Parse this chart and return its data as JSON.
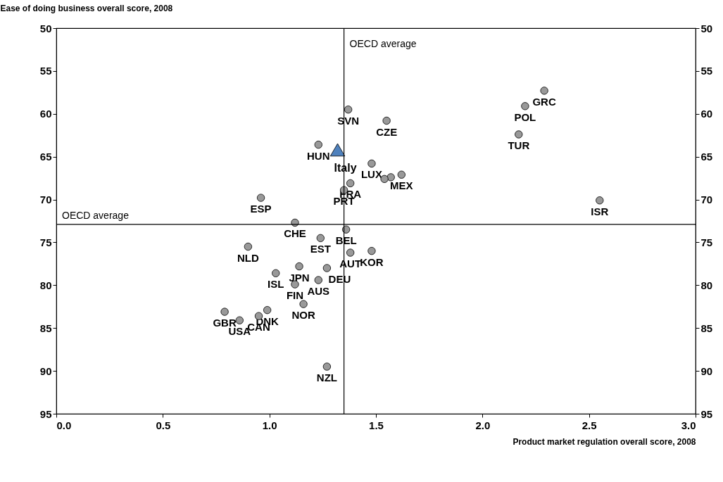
{
  "chart_data": {
    "type": "scatter",
    "xlabel": "Product market regulation overall score, 2008",
    "ylabel": "Ease of doing business overall score, 2008",
    "xlim": [
      0,
      3
    ],
    "xticks": [
      {
        "value": 0,
        "label": "0.0"
      },
      0.5,
      {
        "value": 1,
        "label": "1.0"
      },
      1.5,
      {
        "value": 2,
        "label": "2.0"
      },
      2.5,
      {
        "value": 3,
        "label": "3.0"
      }
    ],
    "ylim": [
      95,
      50
    ],
    "yticks": [
      50,
      55,
      60,
      65,
      70,
      75,
      80,
      85,
      90,
      95
    ],
    "y2lim": [
      95,
      50
    ],
    "y2ticks": [
      50,
      55,
      60,
      65,
      70,
      75,
      80,
      85,
      90,
      95
    ],
    "grid": false,
    "series": [
      {
        "color": "#999999",
        "marker": "circle",
        "x": [
          2.29,
          2.2,
          2.17,
          2.55,
          1.37,
          1.55,
          1.23,
          1.48,
          1.62,
          1.57,
          1.54,
          1.38,
          1.35,
          0.96,
          1.12,
          1.24,
          1.36,
          0.9,
          1.38,
          1.48,
          1.03,
          1.14,
          1.27,
          1.23,
          1.12,
          1.16,
          0.79,
          0.86,
          0.95,
          0.99,
          1.27
        ],
        "values": [
          57.3,
          59.1,
          62.4,
          70.1,
          59.5,
          60.8,
          63.6,
          65.8,
          67.1,
          67.4,
          67.6,
          68.1,
          68.9,
          69.8,
          72.7,
          74.5,
          73.5,
          75.5,
          76.2,
          76.0,
          78.6,
          77.8,
          78.0,
          79.4,
          79.9,
          82.2,
          83.1,
          84.1,
          83.6,
          82.9,
          89.5
        ]
      },
      {
        "name": "Italy",
        "color": "#4f81bd",
        "marker": "triangle",
        "x": [
          1.32
        ],
        "values": [
          64.2
        ]
      }
    ],
    "ref_lines": [
      {
        "axis": "x",
        "value": 1.35,
        "label": "OECD average"
      },
      {
        "axis": "y",
        "value": 72.9,
        "label": "OECD average"
      }
    ],
    "annotations": [
      {
        "text": "GRC",
        "x": 2.29,
        "y": 57.3
      },
      {
        "text": "POL",
        "x": 2.2,
        "y": 59.1
      },
      {
        "text": "TUR",
        "x": 2.17,
        "y": 62.4
      },
      {
        "text": "ISR",
        "x": 2.55,
        "y": 70.1
      },
      {
        "text": "SVN",
        "x": 1.37,
        "y": 59.5
      },
      {
        "text": "CZE",
        "x": 1.55,
        "y": 60.8
      },
      {
        "text": "HUN",
        "x": 1.23,
        "y": 63.6
      },
      {
        "text": "LUX",
        "x": 1.48,
        "y": 65.8
      },
      {
        "text": "MEX",
        "x": 1.62,
        "y": 67.1
      },
      {
        "text": "FRA",
        "x": 1.38,
        "y": 68.1
      },
      {
        "text": "PRT",
        "x": 1.35,
        "y": 68.9
      },
      {
        "text": "ESP",
        "x": 0.96,
        "y": 69.8
      },
      {
        "text": "CHE",
        "x": 1.12,
        "y": 72.7
      },
      {
        "text": "EST",
        "x": 1.24,
        "y": 74.5
      },
      {
        "text": "BEL",
        "x": 1.36,
        "y": 73.5
      },
      {
        "text": "NLD",
        "x": 0.9,
        "y": 75.5
      },
      {
        "text": "AUT",
        "x": 1.38,
        "y": 76.2
      },
      {
        "text": "KOR",
        "x": 1.48,
        "y": 76.0
      },
      {
        "text": "ISL",
        "x": 1.03,
        "y": 78.6
      },
      {
        "text": "JPN",
        "x": 1.14,
        "y": 77.8
      },
      {
        "text": "DEU",
        "x": 1.27,
        "y": 78.0
      },
      {
        "text": "AUS",
        "x": 1.23,
        "y": 79.4
      },
      {
        "text": "FIN",
        "x": 1.12,
        "y": 79.9
      },
      {
        "text": "NOR",
        "x": 1.16,
        "y": 82.2
      },
      {
        "text": "GBR",
        "x": 0.79,
        "y": 83.1
      },
      {
        "text": "USA",
        "x": 0.86,
        "y": 84.1
      },
      {
        "text": "CAN",
        "x": 0.95,
        "y": 83.6
      },
      {
        "text": "DNK",
        "x": 0.99,
        "y": 82.9
      },
      {
        "text": "NZL",
        "x": 1.27,
        "y": 89.5
      }
    ]
  }
}
